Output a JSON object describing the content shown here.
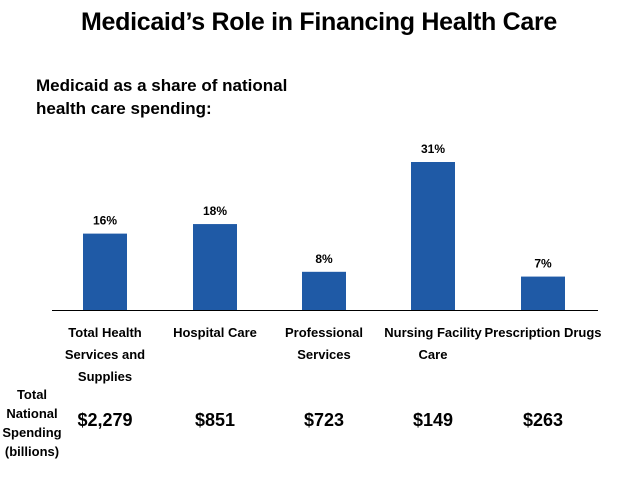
{
  "title": "Medicaid’s Role in Financing Health Care",
  "subtitle": "Medicaid as a share of national health care spending:",
  "spending_label": [
    "Total",
    "National",
    "Spending",
    "(billions)"
  ],
  "spending_values": [
    "$2,279",
    "$851",
    "$723",
    "$149",
    "$263"
  ],
  "colors": {
    "bar": "#1f5aa6",
    "axis": "#000000"
  },
  "chart_data": {
    "type": "bar",
    "categories": [
      [
        "Total Health",
        "Services and",
        "Supplies"
      ],
      [
        "Hospital Care"
      ],
      [
        "Professional",
        "Services"
      ],
      [
        "Nursing Facility",
        "Care"
      ],
      [
        "Prescription Drugs"
      ]
    ],
    "values": [
      16,
      18,
      8,
      31,
      7
    ],
    "data_labels": [
      "16%",
      "18%",
      "8%",
      "31%",
      "7%"
    ],
    "unit": "%",
    "ylim": [
      0,
      31
    ],
    "grid": false,
    "legend": "none"
  }
}
